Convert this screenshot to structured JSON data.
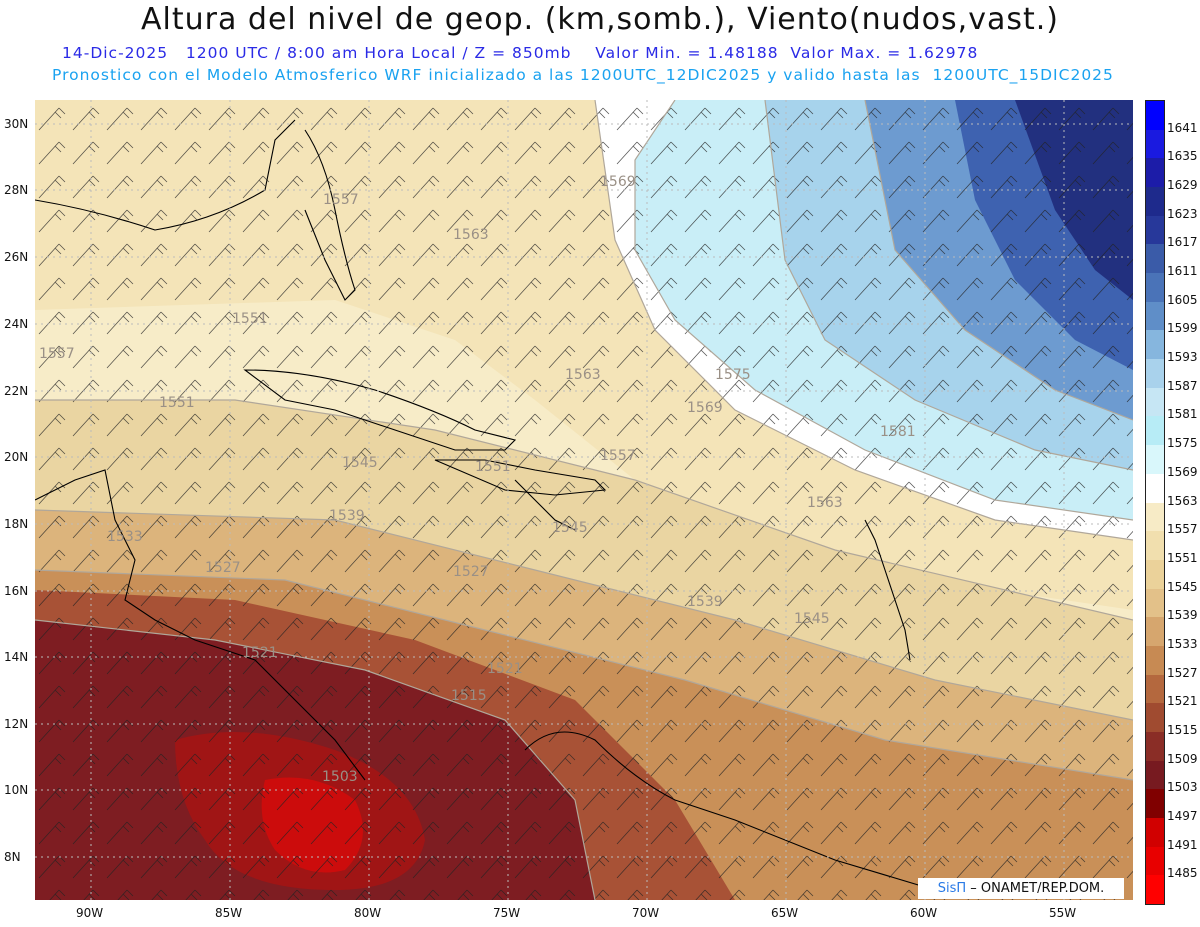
{
  "title": "Altura del nivel de geop. (km,somb.), Viento(nudos,vast.)",
  "subtitle_line1": "14-Dic-2025   1200 UTC / 8:00 am Hora Local / Z = 850mb    Valor Min. = 1.48188  Valor Max. = 1.62978",
  "subtitle_line2": "Pronostico con el Modelo Atmosferico WRF inicializado a las 1200UTC_12DIC2025 y valido hasta las  1200UTC_15DIC2025",
  "latitude_labels": [
    "30N",
    "28N",
    "26N",
    "24N",
    "22N",
    "20N",
    "18N",
    "16N",
    "14N",
    "12N",
    "10N",
    "8N"
  ],
  "longitude_labels": [
    "90W",
    "85W",
    "80W",
    "75W",
    "70W",
    "65W",
    "60W",
    "55W"
  ],
  "colorbar": {
    "levels": [
      "1641",
      "1635",
      "1629",
      "1623",
      "1617",
      "1611",
      "1605",
      "1599",
      "1593",
      "1587",
      "1581",
      "1575",
      "1569",
      "1563",
      "1557",
      "1551",
      "1545",
      "1539",
      "1533",
      "1527",
      "1521",
      "1515",
      "1509",
      "1503",
      "1497",
      "1491",
      "1485"
    ],
    "colors": [
      "#0000ff",
      "#1a1ae0",
      "#1c1ca8",
      "#1e2a8c",
      "#27389a",
      "#3a5ba8",
      "#4a73b8",
      "#5f8ec8",
      "#86b6de",
      "#a9d2ec",
      "#c6e6f4",
      "#b7ecf6",
      "#d9f7fb",
      "#ffffff",
      "#f7ebc6",
      "#f1dfae",
      "#ebd29a",
      "#e3c189",
      "#d6a66e",
      "#c78a53",
      "#b4683e",
      "#a04b30",
      "#8a2d26",
      "#771a20",
      "#800000",
      "#d10000",
      "#e80000",
      "#ff0000"
    ]
  },
  "contour_labels": [
    "1569",
    "1557",
    "1563",
    "1551",
    "1557",
    "1551",
    "1563",
    "1575",
    "1569",
    "1581",
    "1545",
    "1551",
    "1557",
    "1563",
    "1539",
    "1545",
    "1533",
    "1527",
    "1539",
    "1545",
    "1521",
    "1515",
    "1503",
    "1521",
    "1527"
  ],
  "credit": {
    "brand": "SisΠ",
    "text": "– ONAMET/REP.DOM."
  }
}
